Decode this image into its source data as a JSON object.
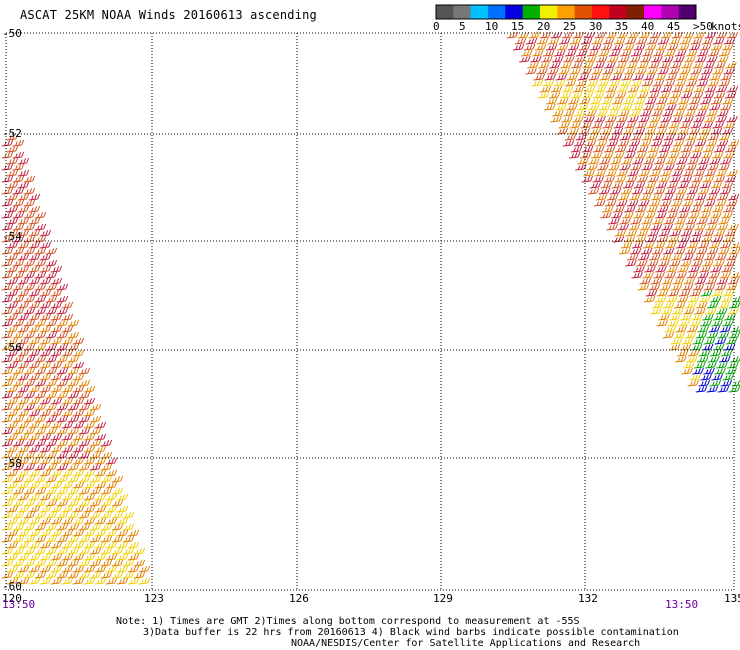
{
  "title": "ASCAT 25KM NOAA Winds 20160613 ascending",
  "colorbar": {
    "labels": [
      "0",
      "5",
      "10",
      "15",
      "20",
      "25",
      "30",
      "35",
      "40",
      "45",
      ">50"
    ],
    "unit": "knots",
    "colors": [
      "#555555",
      "#777777",
      "#00c0ff",
      "#0070ff",
      "#0000e0",
      "#00b000",
      "#f0f000",
      "#ffa000",
      "#e05000",
      "#ff1010",
      "#c00020",
      "#802000",
      "#ff00ff",
      "#b000b0",
      "#500070"
    ]
  },
  "lat_labels": [
    "-50",
    "-52",
    "-54",
    "-56",
    "-58",
    "-60"
  ],
  "lon_labels": [
    "120",
    "123",
    "126",
    "129",
    "132",
    "135"
  ],
  "time_labels": {
    "left": "13:50",
    "right": "13:50"
  },
  "notes": {
    "line1": "Note: 1) Times are GMT 2)Times along bottom correspond to measurement at -55S",
    "line2": "3)Data buffer is 22 hrs from 20160613 4) Black wind barbs indicate possible contamination",
    "line3": "NOAA/NESDIS/Center for Satellite Applications and Research"
  },
  "barb_colors": {
    "knots_20_25": "#f0d000",
    "knots_25_30": "#e08000",
    "knots_30_35": "#d05020",
    "knots_35_40": "#c02040",
    "knots_15_20": "#00a000",
    "knots_10_15": "#0000d0"
  }
}
